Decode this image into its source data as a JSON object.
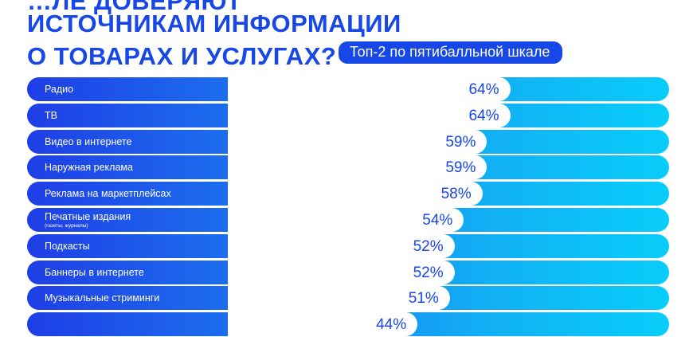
{
  "title": {
    "line0": "…ЛЕ ДОВЕРЯЮТ",
    "line1": "ИСТОЧНИКАМ ИНФОРМАЦИИ",
    "line2": "О ТОВАРАХ И УСЛУГАХ?",
    "badge": "Топ-2 по пятибалльной шкале"
  },
  "chart_data": {
    "type": "bar",
    "orientation": "horizontal",
    "xlim": [
      0,
      100
    ],
    "categories": [
      "Радио",
      "ТВ",
      "Видео в интернете",
      "Наружная реклама",
      "Реклама на маркетплейсах",
      "Печатные издания",
      "Подкасты",
      "Баннеры в интернете",
      "Музыкальные стриминги",
      ""
    ],
    "sublabels": [
      "",
      "",
      "",
      "",
      "",
      "(газеты, журналы)",
      "",
      "",
      "",
      ""
    ],
    "values": [
      64,
      64,
      59,
      59,
      58,
      54,
      52,
      52,
      51,
      44
    ],
    "value_labels": [
      "64%",
      "64%",
      "59%",
      "59%",
      "58%",
      "54%",
      "52%",
      "52%",
      "51%",
      "44%"
    ],
    "colors": {
      "accent": "#1747e6",
      "gradient_start": "#1f3ee6",
      "gradient_end": "#08cdfa",
      "bar": "#ffffff"
    }
  }
}
